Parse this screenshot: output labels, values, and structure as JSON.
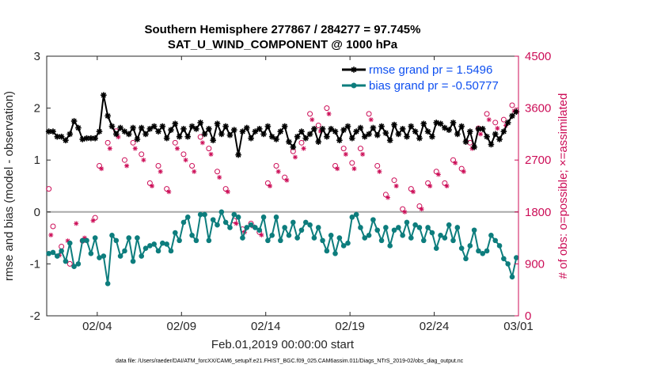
{
  "chart_data": {
    "type": "line",
    "title_line1": "Southern Hemisphere 277867 / 284277 = 97.745%",
    "title_line2": "SAT_U_WIND_COMPONENT @ 1000 hPa",
    "xlabel": "Feb.01,2019 00:00:00 start",
    "ylabel_left": "rmse and bias (model - observation)",
    "ylabel_right": "# of obs: o=possible; ×=assimilated",
    "footnote": "data file: /Users/raeder/DAI/ATM_forcXX/CAM6_setup/f.e21.FHIST_BGC.f09_025.CAM6assim.011/Diags_NTrS_2019-02/obs_diag_output.nc",
    "xlim": [
      0,
      28
    ],
    "x_ticks": [
      3,
      8,
      13,
      18,
      23,
      28
    ],
    "x_tick_labels": [
      "02/04",
      "02/09",
      "02/14",
      "02/19",
      "02/24",
      "03/01"
    ],
    "ylim_left": [
      -2,
      3
    ],
    "y_ticks_left": [
      "-2",
      "-1",
      "0",
      "1",
      "2",
      "3"
    ],
    "ylim_right": [
      0,
      4500
    ],
    "y_ticks_right": [
      "0",
      "900",
      "1800",
      "2700",
      "3600",
      "4500"
    ],
    "zero_line": 0,
    "colors": {
      "rmse": "#000000",
      "bias": "#0d7d7d",
      "obs": "#cc0d57",
      "legend_text": "#0e4ff0",
      "zero": "#a8a8a8"
    },
    "series": [
      {
        "name": "rmse grand pr = 1.5496",
        "x": [
          0.125,
          0.375,
          0.625,
          0.875,
          1.125,
          1.375,
          1.625,
          1.875,
          2.125,
          2.375,
          2.625,
          2.875,
          3.125,
          3.375,
          3.625,
          3.875,
          4.125,
          4.375,
          4.625,
          4.875,
          5.125,
          5.375,
          5.625,
          5.875,
          6.125,
          6.375,
          6.625,
          6.875,
          7.125,
          7.375,
          7.625,
          7.875,
          8.125,
          8.375,
          8.625,
          8.875,
          9.125,
          9.375,
          9.625,
          9.875,
          10.125,
          10.375,
          10.625,
          10.875,
          11.125,
          11.375,
          11.625,
          11.875,
          12.125,
          12.375,
          12.625,
          12.875,
          13.125,
          13.375,
          13.625,
          13.875,
          14.125,
          14.375,
          14.625,
          14.875,
          15.125,
          15.375,
          15.625,
          15.875,
          16.125,
          16.375,
          16.625,
          16.875,
          17.125,
          17.375,
          17.625,
          17.875,
          18.125,
          18.375,
          18.625,
          18.875,
          19.125,
          19.375,
          19.625,
          19.875,
          20.125,
          20.375,
          20.625,
          20.875,
          21.125,
          21.375,
          21.625,
          21.875,
          22.125,
          22.375,
          22.625,
          22.875,
          23.125,
          23.375,
          23.625,
          23.875,
          24.125,
          24.375,
          24.625,
          24.875,
          25.125,
          25.375,
          25.625,
          25.875,
          26.125,
          26.375,
          26.625,
          26.875,
          27.125,
          27.375,
          27.625,
          27.875
        ],
        "values": [
          1.55,
          1.55,
          1.45,
          1.45,
          1.38,
          1.5,
          1.75,
          1.62,
          1.4,
          1.42,
          1.42,
          1.42,
          1.55,
          2.25,
          1.85,
          1.65,
          1.5,
          1.62,
          1.55,
          1.5,
          1.62,
          1.4,
          1.62,
          1.5,
          1.6,
          1.65,
          1.55,
          1.65,
          1.42,
          1.58,
          1.7,
          1.45,
          1.6,
          1.45,
          1.65,
          1.6,
          1.72,
          1.5,
          1.6,
          1.38,
          1.7,
          1.5,
          1.65,
          1.48,
          1.58,
          1.1,
          1.55,
          1.62,
          1.42,
          1.55,
          1.6,
          1.5,
          1.65,
          1.45,
          1.4,
          1.55,
          1.65,
          1.35,
          1.25,
          1.45,
          1.55,
          1.42,
          1.5,
          1.6,
          1.35,
          1.6,
          1.45,
          1.6,
          1.55,
          1.38,
          1.58,
          1.65,
          1.42,
          1.55,
          1.62,
          1.45,
          1.5,
          1.62,
          1.48,
          1.65,
          1.52,
          1.38,
          1.68,
          1.5,
          1.6,
          1.45,
          1.65,
          1.55,
          1.42,
          1.7,
          1.55,
          1.45,
          1.72,
          1.7,
          1.62,
          1.58,
          1.72,
          1.5,
          1.65,
          1.35,
          1.55,
          1.25,
          1.6,
          1.6,
          1.45,
          1.3,
          1.5,
          1.4,
          1.55,
          1.72,
          1.85,
          1.93
        ]
      },
      {
        "name": "bias grand pr = -0.50777",
        "x": [
          0.125,
          0.375,
          0.625,
          0.875,
          1.125,
          1.375,
          1.625,
          1.875,
          2.125,
          2.375,
          2.625,
          2.875,
          3.125,
          3.375,
          3.625,
          3.875,
          4.125,
          4.375,
          4.625,
          4.875,
          5.125,
          5.375,
          5.625,
          5.875,
          6.125,
          6.375,
          6.625,
          6.875,
          7.125,
          7.375,
          7.625,
          7.875,
          8.125,
          8.375,
          8.625,
          8.875,
          9.125,
          9.375,
          9.625,
          9.875,
          10.125,
          10.375,
          10.625,
          10.875,
          11.125,
          11.375,
          11.625,
          11.875,
          12.125,
          12.375,
          12.625,
          12.875,
          13.125,
          13.375,
          13.625,
          13.875,
          14.125,
          14.375,
          14.625,
          14.875,
          15.125,
          15.375,
          15.625,
          15.875,
          16.125,
          16.375,
          16.625,
          16.875,
          17.125,
          17.375,
          17.625,
          17.875,
          18.125,
          18.375,
          18.625,
          18.875,
          19.125,
          19.375,
          19.625,
          19.875,
          20.125,
          20.375,
          20.625,
          20.875,
          21.125,
          21.375,
          21.625,
          21.875,
          22.125,
          22.375,
          22.625,
          22.875,
          23.125,
          23.375,
          23.625,
          23.875,
          24.125,
          24.375,
          24.625,
          24.875,
          25.125,
          25.375,
          25.625,
          25.875,
          26.125,
          26.375,
          26.625,
          26.875,
          27.125,
          27.375,
          27.625,
          27.875
        ],
        "values": [
          -0.8,
          -0.78,
          -0.85,
          -0.75,
          -0.95,
          -0.6,
          -1.05,
          -1.0,
          -0.55,
          -0.55,
          -0.8,
          -0.5,
          -0.88,
          -0.85,
          -1.38,
          -0.45,
          -0.55,
          -0.85,
          -0.75,
          -0.5,
          -0.95,
          -0.5,
          -0.85,
          -0.7,
          -0.65,
          -0.62,
          -0.75,
          -0.6,
          -0.62,
          -0.75,
          -0.4,
          -0.55,
          -0.2,
          -0.1,
          -0.45,
          -0.55,
          -0.05,
          -0.05,
          -0.55,
          -0.15,
          -0.25,
          0.0,
          -0.2,
          -0.3,
          -0.05,
          -0.1,
          -0.5,
          -0.3,
          -0.25,
          -0.3,
          -0.35,
          -0.1,
          -0.55,
          -0.45,
          -0.1,
          -0.55,
          -0.3,
          -0.45,
          -0.2,
          -0.5,
          -0.35,
          -0.2,
          -0.25,
          -0.5,
          -0.3,
          -0.55,
          -0.75,
          -0.45,
          -0.8,
          -0.5,
          -0.65,
          -0.6,
          -0.1,
          -0.05,
          -0.3,
          -0.5,
          -0.45,
          -0.15,
          -0.35,
          -0.55,
          -0.3,
          -0.65,
          -0.35,
          -0.3,
          -0.45,
          -0.2,
          -0.5,
          -0.25,
          -0.3,
          -0.55,
          -0.3,
          -0.4,
          -0.7,
          -0.45,
          -0.5,
          -0.25,
          -0.55,
          -0.3,
          -0.7,
          -0.9,
          -0.65,
          -0.35,
          -0.75,
          -0.8,
          -0.75,
          -0.45,
          -0.55,
          -0.65,
          -0.9,
          -1.0,
          -1.25,
          -0.88
        ]
      }
    ],
    "obs_possible": {
      "x": [
        0.125,
        0.375,
        0.875,
        1.375,
        2.125,
        2.875,
        3.125,
        3.625,
        4.125,
        4.625,
        5.125,
        5.625,
        6.125,
        6.625,
        7.125,
        7.625,
        8.125,
        8.625,
        9.125,
        9.625,
        10.125,
        10.625,
        11.125,
        11.625,
        12.125,
        12.625,
        13.125,
        13.625,
        14.125,
        14.625,
        15.125,
        15.625,
        16.125,
        16.625,
        17.125,
        17.625,
        18.125,
        18.625,
        19.125,
        19.625,
        20.125,
        20.625,
        21.125,
        21.625,
        22.125,
        22.625,
        23.125,
        23.625,
        24.125,
        24.625,
        25.125,
        25.625,
        26.125,
        26.625,
        27.125,
        27.625
      ],
      "values": [
        2200,
        1550,
        1200,
        900,
        1300,
        1700,
        2600,
        3000,
        3200,
        2700,
        3000,
        2800,
        2300,
        2600,
        2200,
        3000,
        2800,
        2600,
        3100,
        2900,
        2500,
        2200,
        1650,
        1500,
        1600,
        1450,
        2300,
        2600,
        2400,
        2850,
        3000,
        3500,
        3300,
        3600,
        2600,
        2900,
        2650,
        2900,
        3500,
        2600,
        2100,
        2350,
        1850,
        2200,
        1900,
        2300,
        2500,
        2300,
        2700,
        2550,
        3000,
        3250,
        3500,
        3350,
        3400,
        3650
      ]
    },
    "obs_assimilated": {
      "x": [
        0.25,
        0.75,
        1.25,
        1.75,
        2.25,
        2.75,
        3.25,
        3.75,
        4.25,
        4.75,
        5.25,
        5.75,
        6.25,
        6.75,
        7.25,
        7.75,
        8.25,
        8.75,
        9.25,
        9.75,
        10.25,
        10.75,
        11.25,
        11.75,
        12.25,
        12.75,
        13.25,
        13.75,
        14.25,
        14.75,
        15.25,
        15.75,
        16.25,
        16.75,
        17.25,
        17.75,
        18.25,
        18.75,
        19.25,
        19.75,
        20.25,
        20.75,
        21.25,
        21.75,
        22.25,
        22.75,
        23.25,
        23.75,
        24.25,
        24.75,
        25.25,
        25.75,
        26.25,
        26.75,
        27.25,
        27.75
      ],
      "values": [
        1400,
        1050,
        1300,
        1600,
        1350,
        1650,
        2550,
        2900,
        3100,
        2600,
        2900,
        2700,
        2250,
        2500,
        2150,
        2900,
        2700,
        2500,
        3000,
        2800,
        2400,
        2150,
        1600,
        1450,
        1550,
        1400,
        2250,
        2500,
        2350,
        2750,
        2900,
        3400,
        3200,
        3500,
        2550,
        2800,
        2550,
        2800,
        3400,
        2500,
        2050,
        2250,
        1800,
        2150,
        1850,
        2250,
        2450,
        2250,
        2650,
        2500,
        2900,
        3150,
        3400,
        3250,
        3300,
        3550
      ]
    }
  }
}
